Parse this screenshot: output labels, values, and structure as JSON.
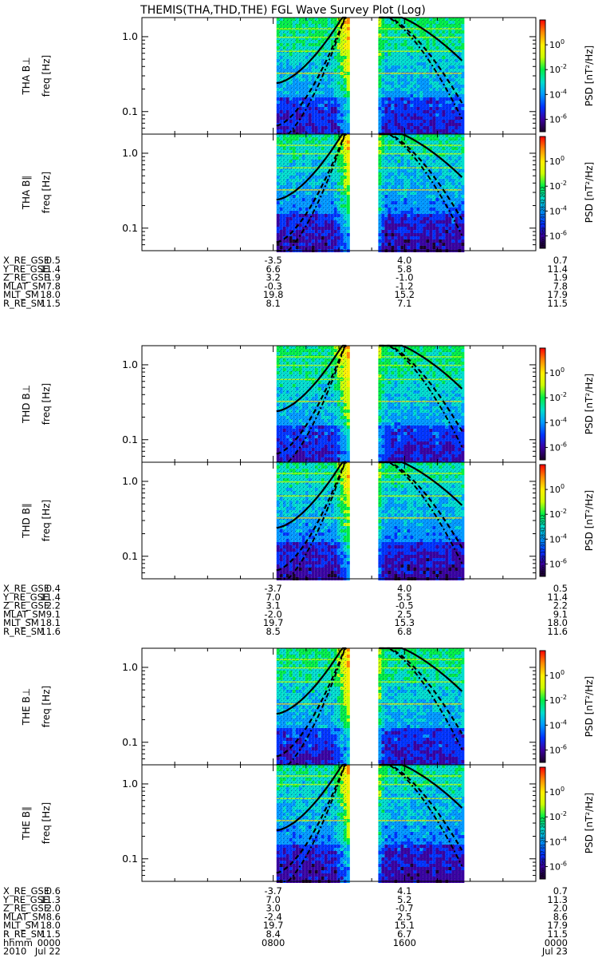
{
  "title": "THEMIS(THA,THD,THE) FGL Wave Survey Plot (Log)",
  "colors": {
    "background": "#ffffff",
    "axis": "#000000",
    "data_gap": "#ffffff",
    "colormap": [
      "#1a0026",
      "#3a00a0",
      "#0033ff",
      "#0099ff",
      "#00ddcc",
      "#00ee44",
      "#ccff00",
      "#ffee00",
      "#ff8800",
      "#ff0000"
    ]
  },
  "chart_data": {
    "type": "heatmap",
    "x_range_hhmm": [
      "0000",
      "2400"
    ],
    "x_ticks": [
      "0000",
      "0800",
      "1600",
      "0000"
    ],
    "x_dates": [
      "Jul 22",
      "Jul 23"
    ],
    "year_label": "2010",
    "time_label": "hhmm",
    "coverage_hours": [
      [
        8.2,
        12.5
      ],
      [
        14.4,
        19.5
      ]
    ],
    "freq_axis": {
      "label": "freq [Hz]",
      "scale": "log",
      "range": [
        0.05,
        1.8
      ],
      "ticks": [
        "0.1",
        "1.0"
      ]
    },
    "colorbar": {
      "label": "PSD [nT²/Hz]",
      "scale": "log",
      "range": [
        1e-07,
        100
      ],
      "ticks": [
        {
          "base": "10",
          "exp": "0"
        },
        {
          "base": "10",
          "exp": "-2"
        },
        {
          "base": "10",
          "exp": "-4"
        },
        {
          "base": "10",
          "exp": "-6"
        }
      ]
    },
    "overlay_curves": [
      "solid (ion gyrofrequency)",
      "dashed",
      "dash-dot"
    ],
    "groups": [
      {
        "probe": "THA",
        "panels": [
          {
            "name": "THA B⊥",
            "stamp": ""
          },
          {
            "name": "THA B∥",
            "stamp": "Mon Sep 17 01:28:42 2012"
          }
        ],
        "ephemeris": [
          {
            "label": "X_RE_GSE",
            "values": [
              "0.5",
              "-3.5",
              "4.0",
              "0.7"
            ]
          },
          {
            "label": "Y_RE_GSE",
            "values": [
              "11.4",
              "6.6",
              "5.8",
              "11.4"
            ]
          },
          {
            "label": "Z_RE_GSE",
            "values": [
              "1.9",
              "3.2",
              "-1.0",
              "1.9"
            ]
          },
          {
            "label": "MLAT_SM",
            "values": [
              "7.8",
              "-0.3",
              "-1.2",
              "7.8"
            ]
          },
          {
            "label": "MLT_SM",
            "values": [
              "18.0",
              "19.8",
              "15.2",
              "17.9"
            ]
          },
          {
            "label": "R_RE_SM",
            "values": [
              "11.5",
              "8.1",
              "7.1",
              "11.5"
            ]
          }
        ]
      },
      {
        "probe": "THD",
        "panels": [
          {
            "name": "THD B⊥",
            "stamp": ""
          },
          {
            "name": "THD B∥",
            "stamp": "Mon Sep 17 01:28:42 2012"
          }
        ],
        "ephemeris": [
          {
            "label": "X_RE_GSE",
            "values": [
              "0.4",
              "-3.7",
              "4.0",
              "0.5"
            ]
          },
          {
            "label": "Y_RE_GSE",
            "values": [
              "11.4",
              "7.0",
              "5.5",
              "11.4"
            ]
          },
          {
            "label": "Z_RE_GSE",
            "values": [
              "2.2",
              "3.1",
              "-0.5",
              "2.2"
            ]
          },
          {
            "label": "MLAT_SM",
            "values": [
              "9.1",
              "-2.0",
              "2.5",
              "9.1"
            ]
          },
          {
            "label": "MLT_SM",
            "values": [
              "18.1",
              "19.7",
              "15.3",
              "18.0"
            ]
          },
          {
            "label": "R_RE_SM",
            "values": [
              "11.6",
              "8.5",
              "6.8",
              "11.6"
            ]
          }
        ]
      },
      {
        "probe": "THE",
        "panels": [
          {
            "name": "THE B⊥",
            "stamp": ""
          },
          {
            "name": "THE B∥",
            "stamp": "Mon Sep 17 01:28:43 2012"
          }
        ],
        "ephemeris": [
          {
            "label": "X_RE_GSE",
            "values": [
              "0.6",
              "-3.7",
              "4.1",
              "0.7"
            ]
          },
          {
            "label": "Y_RE_GSE",
            "values": [
              "11.3",
              "7.0",
              "5.2",
              "11.3"
            ]
          },
          {
            "label": "Z_RE_GSE",
            "values": [
              "2.0",
              "3.0",
              "-0.7",
              "2.0"
            ]
          },
          {
            "label": "MLAT_SM",
            "values": [
              "8.6",
              "-2.4",
              "2.5",
              "8.6"
            ]
          },
          {
            "label": "MLT_SM",
            "values": [
              "18.0",
              "19.7",
              "15.1",
              "17.9"
            ]
          },
          {
            "label": "R_RE_SM",
            "values": [
              "11.5",
              "8.4",
              "6.7",
              "11.5"
            ]
          }
        ]
      }
    ]
  }
}
